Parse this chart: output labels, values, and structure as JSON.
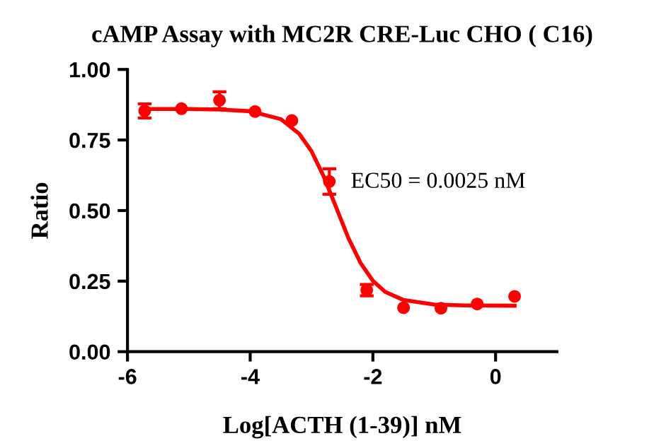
{
  "chart_data": {
    "type": "scatter",
    "title": "cAMP Assay with MC2R CRE-Luc CHO ( C16)",
    "xlabel": "Log[ACTH (1-39)] nM",
    "ylabel": "Ratio",
    "annotations": [
      "EC50 = 0.0025 nM"
    ],
    "xlim": [
      -6,
      1
    ],
    "xticks": [
      -6,
      -4,
      -2,
      0
    ],
    "ylim": [
      0,
      1
    ],
    "yticks": [
      {
        "value": 0,
        "label": "0.00"
      },
      {
        "value": 0.25,
        "label": "0.25"
      },
      {
        "value": 0.5,
        "label": "0.50"
      },
      {
        "value": 0.75,
        "label": "0.75"
      },
      {
        "value": 1,
        "label": "1.00"
      }
    ],
    "grid": false,
    "series": [
      {
        "marker": "circle",
        "color": "#ff0000",
        "x": [
          -5.72,
          -5.12,
          -4.5,
          -3.92,
          -3.32,
          -2.71,
          -2.1,
          -1.5,
          -0.89,
          -0.3,
          0.31
        ],
        "values": [
          0.853,
          0.861,
          0.891,
          0.851,
          0.819,
          0.603,
          0.218,
          0.156,
          0.154,
          0.169,
          0.196
        ],
        "errors": [
          0.025,
          null,
          0.03,
          null,
          null,
          0.045,
          0.02,
          null,
          null,
          null,
          null
        ]
      },
      {
        "type": "line",
        "marker": "none",
        "color": "#ff0000",
        "x": [
          -5.72,
          -5.0,
          -4.5,
          -4.0,
          -3.5,
          -3.2,
          -3.0,
          -2.8,
          -2.6,
          -2.4,
          -2.2,
          -2.0,
          -1.8,
          -1.5,
          -1.0,
          -0.5,
          0.31
        ],
        "values": [
          0.86,
          0.86,
          0.858,
          0.852,
          0.824,
          0.772,
          0.71,
          0.62,
          0.512,
          0.403,
          0.314,
          0.251,
          0.212,
          0.183,
          0.167,
          0.164,
          0.163
        ]
      }
    ]
  }
}
